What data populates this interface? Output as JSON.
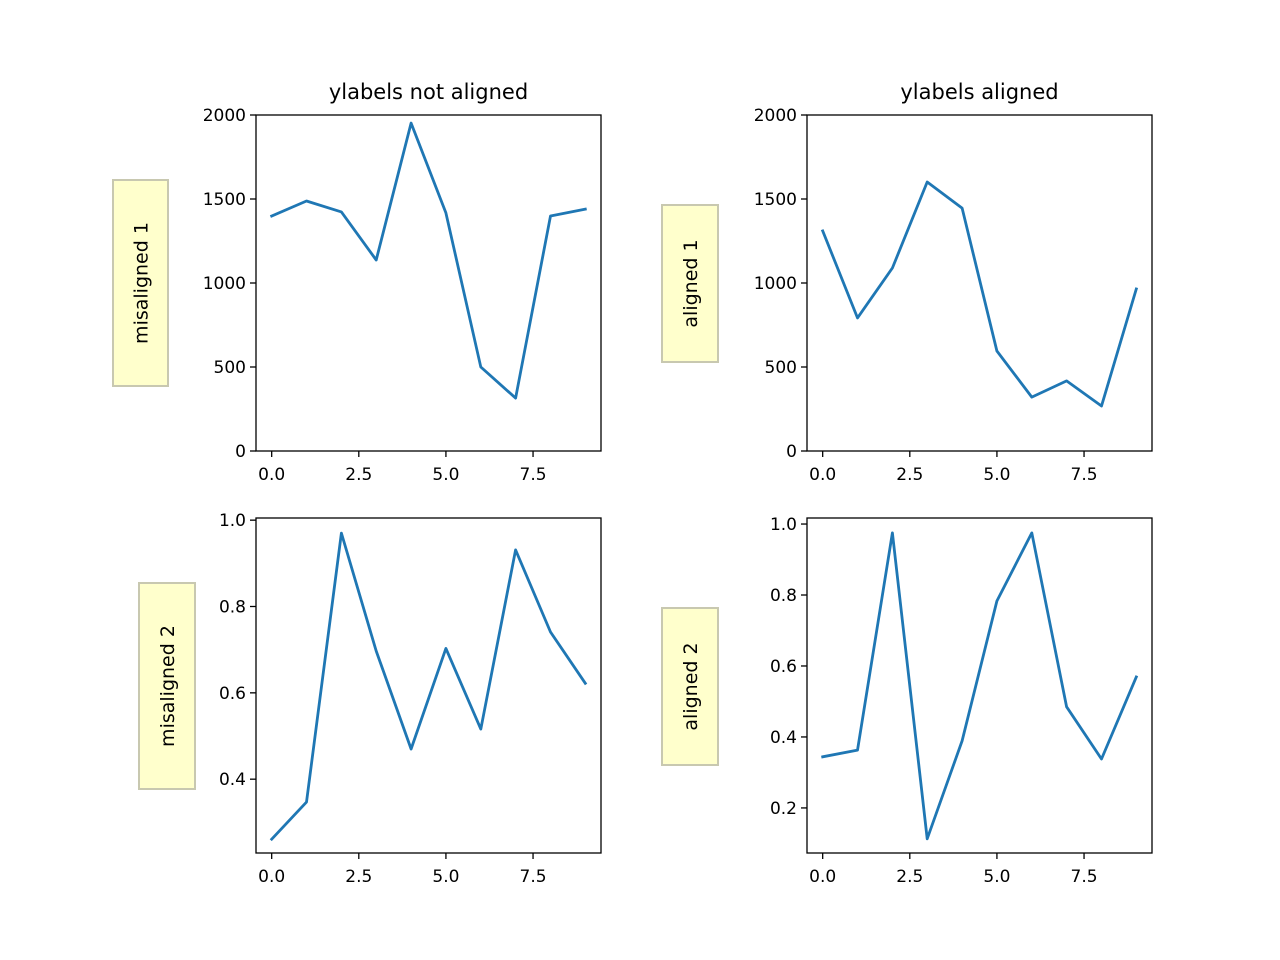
{
  "chart_data": [
    {
      "type": "line",
      "title": "ylabels not aligned",
      "ylabel": "misaligned 1",
      "x": [
        0,
        1,
        2,
        3,
        4,
        5,
        6,
        7,
        8,
        9
      ],
      "series": [
        {
          "values": [
            1399,
            1488,
            1423,
            1137,
            1952,
            1417,
            500,
            315,
            1399,
            1440
          ]
        }
      ],
      "xlim": [
        -0.45,
        9.45
      ],
      "ylim": [
        0,
        2000
      ],
      "xticks": [
        "0.0",
        "2.5",
        "5.0",
        "7.5"
      ],
      "yticks": [
        "0",
        "500",
        "1000",
        "1500",
        "2000"
      ],
      "grid": false
    },
    {
      "type": "line",
      "title": "ylabels aligned",
      "ylabel": "aligned 1",
      "x": [
        0,
        1,
        2,
        3,
        4,
        5,
        6,
        7,
        8,
        9
      ],
      "series": [
        {
          "values": [
            1310,
            792,
            1089,
            1601,
            1446,
            595,
            321,
            417,
            268,
            964
          ]
        }
      ],
      "xlim": [
        -0.45,
        9.45
      ],
      "ylim": [
        0,
        2000
      ],
      "xticks": [
        "0.0",
        "2.5",
        "5.0",
        "7.5"
      ],
      "yticks": [
        "0",
        "500",
        "1000",
        "1500",
        "2000"
      ],
      "grid": false
    },
    {
      "type": "line",
      "title": "",
      "ylabel": "misaligned 2",
      "x": [
        0,
        1,
        2,
        3,
        4,
        5,
        6,
        7,
        8,
        9
      ],
      "series": [
        {
          "values": [
            0.261,
            0.347,
            0.97,
            0.697,
            0.47,
            0.703,
            0.516,
            0.931,
            0.741,
            0.622
          ]
        }
      ],
      "xlim": [
        -0.45,
        9.45
      ],
      "ylim": [
        0.229,
        1.005
      ],
      "xticks": [
        "0.0",
        "2.5",
        "5.0",
        "7.5"
      ],
      "yticks": [
        "0.4",
        "0.6",
        "0.8",
        "1.0"
      ],
      "grid": false
    },
    {
      "type": "line",
      "title": "",
      "ylabel": "aligned 2",
      "x": [
        0,
        1,
        2,
        3,
        4,
        5,
        6,
        7,
        8,
        9
      ],
      "series": [
        {
          "values": [
            0.344,
            0.363,
            0.975,
            0.113,
            0.389,
            0.783,
            0.975,
            0.485,
            0.338,
            0.569
          ]
        }
      ],
      "xlim": [
        -0.45,
        9.45
      ],
      "ylim": [
        0.073,
        1.017
      ],
      "xticks": [
        "0.0",
        "2.5",
        "5.0",
        "7.5"
      ],
      "yticks": [
        "0.2",
        "0.4",
        "0.6",
        "0.8",
        "1.0"
      ],
      "grid": false
    }
  ],
  "colors": {
    "line": "#1f77b4",
    "label_box_fill": "#ffffcc",
    "label_box_edge": "#c8c8b0"
  }
}
